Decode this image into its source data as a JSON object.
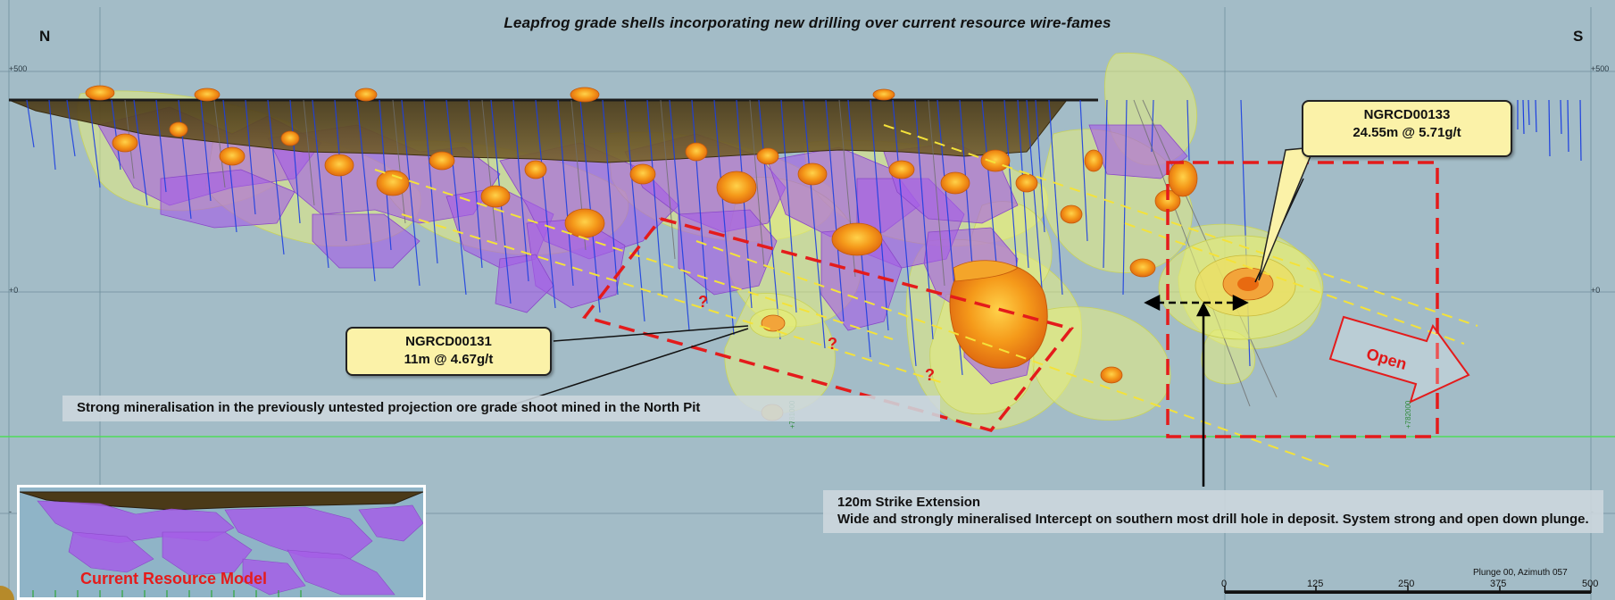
{
  "title": "Leapfrog grade shells incorporating new drilling over current resource wire-fames",
  "compass": {
    "left": "N",
    "right": "S"
  },
  "elevation_labels": {
    "top": "+500",
    "mid": "+0",
    "low": "-"
  },
  "callouts": {
    "ngrcd00133": {
      "hole": "NGRCD00133",
      "intercept": "24.55m @ 5.71g/t"
    },
    "ngrcd00131": {
      "hole": "NGRCD00131",
      "intercept": "11m @ 4.67g/t"
    }
  },
  "notes": {
    "north_pit": "Strong mineralisation in the previously untested projection ore grade shoot mined in the North Pit",
    "strike_title": "120m Strike Extension",
    "strike_body": "Wide and strongly mineralised Intercept on southern most drill hole in deposit.  System strong and open down plunge."
  },
  "question_marks": [
    "?",
    "?",
    "?"
  ],
  "open_label": "Open",
  "inset": {
    "label": "Current Resource Model"
  },
  "scale": {
    "ticks": [
      "0",
      "125",
      "250",
      "375",
      "500"
    ]
  },
  "plunge_text": "Plunge 00, Azimuth 057",
  "colors": {
    "background": "#a3bcc7",
    "pit": "#5e4a22",
    "resource": "#a25ce0",
    "grade_shell_low": "#e8ef7a",
    "grade_shell_high": "#f59a1a",
    "drill_trace": "#1c3fe0",
    "dashed_red": "#e41b1b",
    "dashed_yellow": "#f2e33a",
    "callout_fill": "#fbf2a8"
  }
}
